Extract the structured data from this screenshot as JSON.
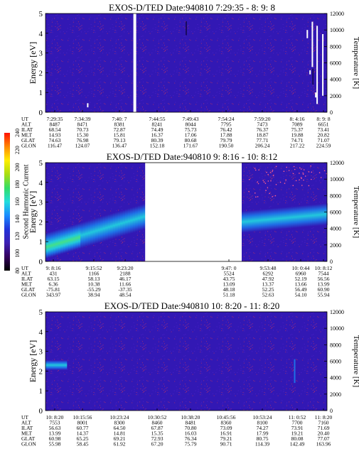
{
  "colorbar": {
    "label": "Second Harmonic Current",
    "ticks": [
      "80",
      "100",
      "120",
      "140",
      "160",
      "180",
      "200",
      "220",
      "240"
    ],
    "stops": [
      "#000000",
      "#33005c",
      "#3d1fb3",
      "#2233d9",
      "#1a8cff",
      "#22dddd",
      "#33dd66",
      "#aadd11",
      "#ffee00",
      "#ff8800",
      "#ff1100"
    ]
  },
  "colors": {
    "background": "#3218b4",
    "speckle": "#9a2a78",
    "blue_band": "#1f6fe6",
    "cyan_band": "#22c8dc",
    "green_core": "#44e08a",
    "temperature_dots": "#ff6090",
    "data_gap": "#ffffff"
  },
  "chart_data": [
    {
      "type": "heatmap",
      "title": "EXOS-D/TED   Date:940810  7:29:35 - 8: 9: 8",
      "ylabel": "Energy [eV]",
      "y2label": "Temperature [K]",
      "ylim": [
        0,
        5
      ],
      "y2lim": [
        0,
        12000
      ],
      "yticks": [
        "0",
        "1",
        "2",
        "3",
        "4",
        "5"
      ],
      "y2ticks": [
        "0",
        "2000",
        "4000",
        "6000",
        "8000",
        "10000",
        "12000"
      ],
      "gaps": [
        [
          0.312,
          0.322
        ]
      ],
      "features": [
        {
          "kind": "dark_patch",
          "t": 0.95,
          "e": [
            1.4,
            2.2
          ]
        },
        {
          "kind": "dark_patch",
          "t": 0.5,
          "e": [
            3.9,
            4.6
          ]
        }
      ],
      "temperature_spikes": [
        {
          "t": 0.948,
          "k": [
            5500,
            11000
          ]
        },
        {
          "t": 0.965,
          "k": [
            1000,
            10500
          ]
        },
        {
          "t": 0.985,
          "k": [
            2000,
            9500
          ]
        },
        {
          "t": 0.93,
          "k": [
            9000,
            10000
          ]
        },
        {
          "t": 0.94,
          "k": [
            4600,
            5100
          ]
        },
        {
          "t": 0.96,
          "k": [
            1800,
            2400
          ]
        },
        {
          "t": 0.15,
          "k": [
            600,
            1100
          ]
        }
      ],
      "orbit": {
        "labels": [
          "UT",
          "ALT",
          "ILAT",
          "MLT",
          "GLAT",
          "GLON"
        ],
        "columns": [
          [
            "7:29:35",
            "8487",
            "68.54",
            "14.93",
            "74.63",
            "116.47"
          ],
          [
            "7:34:39",
            "8471",
            "70.73",
            "15.30",
            "76.98",
            "124.07"
          ],
          [
            "7:40: 7",
            "8381",
            "72.87",
            "15.81",
            "79.13",
            "136.47"
          ],
          [
            "7:44:55",
            "8241",
            "74.49",
            "16.37",
            "80.39",
            "152.18"
          ],
          [
            "7:49:43",
            "8044",
            "75.73",
            "17.06",
            "80.68",
            "171.67"
          ],
          [
            "7:54:24",
            "7795",
            "76.42",
            "17.88",
            "79.79",
            "190.50"
          ],
          [
            "7:59:20",
            "7473",
            "76.37",
            "18.87",
            "77.71",
            "206.24"
          ],
          [
            "8: 4:16",
            "7089",
            "75.37",
            "19.88",
            "74.71",
            "217.22"
          ],
          [
            "8: 9: 8",
            "6651",
            "73.41",
            "20.82",
            "71.07",
            "224.59"
          ]
        ]
      }
    },
    {
      "type": "heatmap",
      "title": "EXOS-D/TED   Date:940810  9: 8:16 - 10: 8:12",
      "ylabel": "Energy [eV]",
      "y2label": "Temperature [K]",
      "ylim": [
        0,
        5
      ],
      "y2lim": [
        0,
        12000
      ],
      "yticks": [
        "0",
        "1",
        "2",
        "3",
        "4",
        "5"
      ],
      "y2ticks": [
        "0",
        "2000",
        "4000",
        "6000",
        "8000",
        "10000",
        "12000"
      ],
      "gaps": [
        [
          0.354,
          0.697
        ]
      ],
      "bands": [
        {
          "t": [
            0.0,
            0.354
          ],
          "profile": "rising",
          "e_center": [
            0.8,
            2.3
          ],
          "width": 1.3
        },
        {
          "t": [
            0.697,
            1.0
          ],
          "profile": "flat",
          "e_center": [
            2.0,
            2.4
          ],
          "width": 1.1
        }
      ],
      "temperature_dots": {
        "t": [
          0.72,
          1.0
        ],
        "k": [
          7000,
          11600
        ]
      },
      "orbit": {
        "labels": [
          "UT",
          "ALT",
          "ILAT",
          "MLT",
          "GLAT",
          "GLON"
        ],
        "columns": [
          [
            "9: 8:16",
            "431",
            "63.15",
            "6.36",
            "-75.81",
            "343.97"
          ],
          [
            "9:15:52",
            "1166",
            "58.13",
            "10.38",
            "-55.29",
            "38.94"
          ],
          [
            "9:23:20",
            "2188",
            "46.17",
            "11.66",
            "-37.35",
            "48.54"
          ],
          [
            "9:47: 0",
            "5524",
            "43.75",
            "13.09",
            "48.18",
            "51.18"
          ],
          [
            "9:53:48",
            "6292",
            "47.92",
            "13.37",
            "52.25",
            "52.63"
          ],
          [
            "10: 0:44",
            "6960",
            "52.19",
            "13.66",
            "56.49",
            "54.10"
          ],
          [
            "10: 8:12",
            "7544",
            "56.56",
            "13.99",
            "60.90",
            "55.94"
          ]
        ]
      }
    },
    {
      "type": "heatmap",
      "title": "EXOS-D/TED   Date:940810  10: 8:20 - 11: 8:20",
      "ylabel": "Energy [eV]",
      "y2label": "Temperature [K]",
      "ylim": [
        0,
        5
      ],
      "y2lim": [
        0,
        12000
      ],
      "yticks": [
        "0",
        "1",
        "2",
        "3",
        "4",
        "5"
      ],
      "y2ticks": [
        "0",
        "2000",
        "4000",
        "6000",
        "8000",
        "10000",
        "12000"
      ],
      "gaps": [],
      "bands": [
        {
          "t": [
            0.0,
            0.075
          ],
          "profile": "flat",
          "e_center": [
            2.3,
            2.3
          ],
          "width": 0.5
        }
      ],
      "features": [
        {
          "kind": "streak",
          "t": 0.885,
          "e": [
            1.4,
            2.6
          ]
        }
      ],
      "orbit": {
        "labels": [
          "UT",
          "ALT",
          "ILAT",
          "MLT",
          "GLAT",
          "GLON"
        ],
        "columns": [
          [
            "10: 8:20",
            "7553",
            "56.63",
            "13.99",
            "60.98",
            "55.98"
          ],
          [
            "10:15:56",
            "8001",
            "60.77",
            "14.37",
            "65.25",
            "58.45"
          ],
          [
            "10:23:24",
            "8300",
            "64.50",
            "14.81",
            "69.21",
            "61.92"
          ],
          [
            "10:30:52",
            "8460",
            "67.87",
            "15.35",
            "72.93",
            "67.20"
          ],
          [
            "10:38:20",
            "8481",
            "70.80",
            "16.03",
            "76.34",
            "75.79"
          ],
          [
            "10:45:56",
            "8360",
            "73.09",
            "16.91",
            "79.21",
            "90.71"
          ],
          [
            "10:53:24",
            "8100",
            "74.27",
            "17.99",
            "80.75",
            "114.39"
          ],
          [
            "11: 0:52",
            "7700",
            "73.91",
            "19.21",
            "80.08",
            "142.49"
          ],
          [
            "11: 8:20",
            "7160",
            "71.69",
            "20.40",
            "77.07",
            "163.96"
          ]
        ]
      }
    }
  ]
}
